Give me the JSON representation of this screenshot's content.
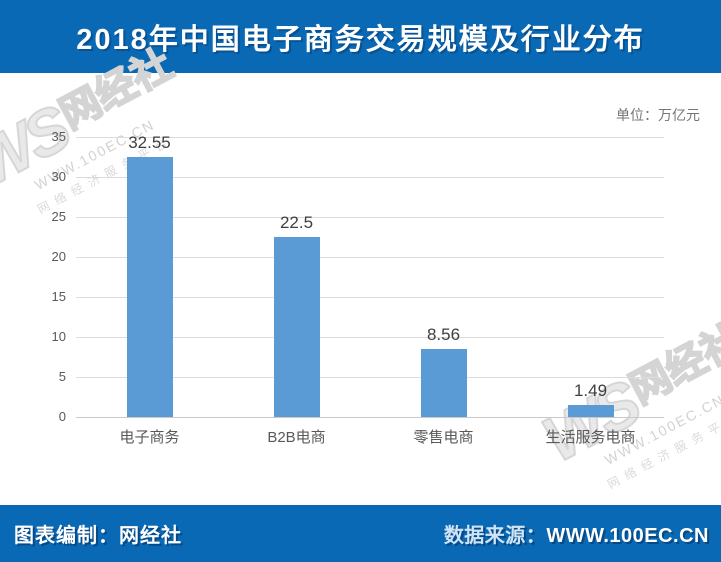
{
  "header": {
    "title": "2018年中国电子商务交易规模及行业分布"
  },
  "chart": {
    "unit_label": "单位：万亿元"
  },
  "chart_data": {
    "type": "bar",
    "title": "2018年中国电子商务交易规模及行业分布",
    "categories": [
      "电子商务",
      "B2B电商",
      "零售电商",
      "生活服务电商"
    ],
    "values": [
      32.55,
      22.5,
      8.56,
      1.49
    ],
    "value_labels": [
      "32.55",
      "22.5",
      "8.56",
      "1.49"
    ],
    "unit": "万亿元",
    "xlabel": "",
    "ylabel": "",
    "ylim": [
      0,
      35
    ],
    "yticks": [
      0,
      5,
      10,
      15,
      20,
      25,
      30,
      35
    ],
    "grid": true,
    "legend": "none",
    "bar_color": "#5b9bd5",
    "gridline_color": "#dcdcdc"
  },
  "watermark": {
    "logo": "WS",
    "name": "网经社",
    "url": "WWW.100EC.CN",
    "slogan": "网络经济服务平台"
  },
  "footer": {
    "left": "图表编制：网经社",
    "right_label": "数据来源：",
    "right_value": "WWW.100EC.CN"
  },
  "colors": {
    "banner_blue": "#0a69b4",
    "bar_blue": "#5b9bd5"
  }
}
